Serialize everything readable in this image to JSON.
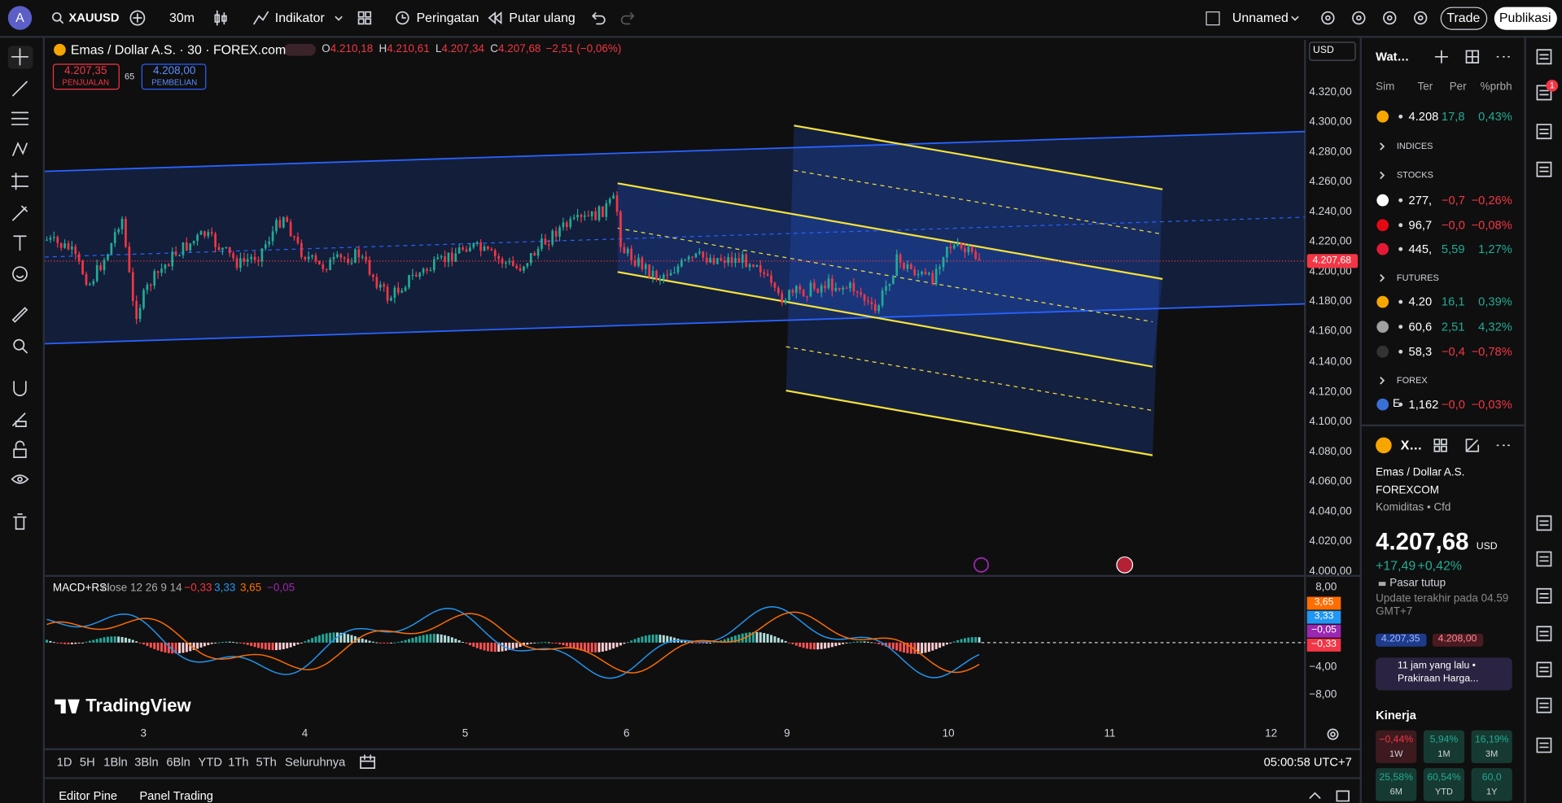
{
  "top_bar": {
    "avatar": "A",
    "symbol": "XAUUSD",
    "interval": "30m",
    "indicators": "Indikator",
    "alerts": "Peringatan",
    "replay": "Putar ulang",
    "layout_name": "Unnamed",
    "trade": "Trade",
    "publish": "Publikasi"
  },
  "chart_header": {
    "title": "Emas / Dollar A.S. · 30 · FOREX.com",
    "ohlc": [
      {
        "key": "O",
        "value": "4.210,18"
      },
      {
        "key": "H",
        "value": "4.210,61"
      },
      {
        "key": "L",
        "value": "4.207,34"
      },
      {
        "key": "C",
        "value": "4.207,68"
      }
    ],
    "change": "−2,51 (−0,06%)",
    "sell": {
      "price": "4.207,35",
      "label": "PENJUALAN"
    },
    "spread": "65",
    "buy": {
      "price": "4.208,00",
      "label": "PEMBELIAN"
    },
    "currency": "USD"
  },
  "price_axis": {
    "labels": [
      "4.320,00",
      "4.300,00",
      "4.280,00",
      "4.260,00",
      "4.240,00",
      "4.220,00",
      "4.200,00",
      "4.180,00",
      "4.160,00",
      "4.140,00",
      "4.120,00",
      "4.100,00",
      "4.080,00",
      "4.060,00",
      "4.040,00",
      "4.020,00",
      "4.000,00"
    ],
    "last_price": "4.207,68"
  },
  "indicator": {
    "name": "MACD+RSI",
    "params": "close 12 26 9 14",
    "values": [
      "−0,33",
      "3,33",
      "3,65",
      "−0,05"
    ],
    "axis_labels": [
      "8,00",
      "−4,00",
      "−8,00"
    ],
    "badges": [
      "3,65",
      "3,33",
      "−0,05",
      "−0,33"
    ]
  },
  "watermark": "TradingView",
  "time_axis": [
    "3",
    "4",
    "5",
    "6",
    "9",
    "10",
    "11",
    "12"
  ],
  "bottom_bar": {
    "ranges": [
      "1D",
      "5H",
      "1Bln",
      "3Bln",
      "6Bln",
      "YTD",
      "1Th",
      "5Th",
      "Seluruhnya"
    ],
    "clock": "05:00:58 UTC+7"
  },
  "bottom_tabs": [
    "Editor Pine",
    "Panel Trading"
  ],
  "watchlist": {
    "title": "Wat…",
    "columns": [
      "Sim",
      "Ter",
      "Per",
      "%prbh"
    ],
    "rows": [
      {
        "last": "4.208",
        "change": "17,8",
        "percent": "0,43%"
      },
      {
        "section": "INDICES"
      },
      {
        "section": "STOCKS"
      },
      {
        "last": "277,",
        "change": "−0,7",
        "percent": "−0,26%"
      },
      {
        "last": "96,7",
        "change": "−0,0",
        "percent": "−0,08%"
      },
      {
        "last": "445,",
        "change": "5,59",
        "percent": "1,27%"
      },
      {
        "section": "FUTURES"
      },
      {
        "last": "4.20",
        "change": "16,1",
        "percent": "0,39%"
      },
      {
        "last": "60,6",
        "change": "2,51",
        "percent": "4,32%"
      },
      {
        "last": "58,3",
        "change": "−0,4",
        "percent": "−0,78%"
      },
      {
        "section": "FOREX"
      },
      {
        "symbol": "E",
        "last": "1,162",
        "change": "−0,0",
        "percent": "−0,03%"
      }
    ]
  },
  "details": {
    "symbol": "X…",
    "name": "Emas / Dollar A.S.",
    "exchange": "FOREXCOM",
    "category": "Komiditas • Cfd",
    "price": "4.207,68",
    "currency": "USD",
    "change": "+17,49",
    "change_percent": "+0,42%",
    "status": "Pasar tutup",
    "updated": "Update terakhir pada 04.59 GMT+7",
    "bid": "4.207,35",
    "ask": "4.208,00",
    "news_time": "11 jam yang lalu •",
    "news_title": "Prakiraan Harga...",
    "performance_title": "Kinerja",
    "performance": [
      {
        "value": "−0,44%",
        "period": "1W"
      },
      {
        "value": "5,94%",
        "period": "1M"
      },
      {
        "value": "16,19%",
        "period": "3M"
      },
      {
        "value": "25,58%",
        "period": "6M"
      },
      {
        "value": "60,54%",
        "period": "YTD"
      },
      {
        "value": "60,0",
        "period": "1Y"
      }
    ]
  },
  "notifications": "1"
}
